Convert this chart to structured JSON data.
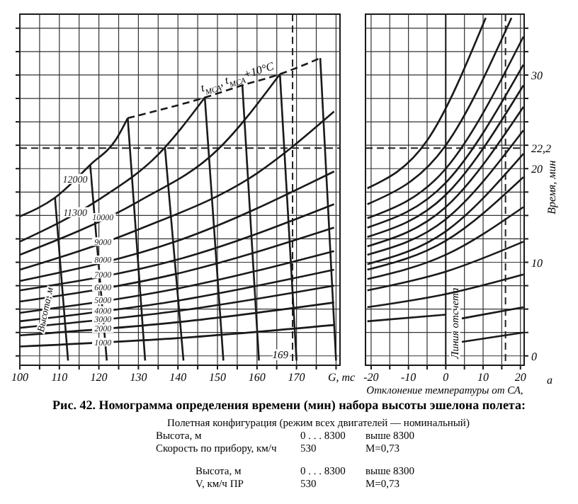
{
  "chart_data": [
    {
      "type": "line",
      "xlabel": "G, тс",
      "xlim": [
        100,
        181
      ],
      "ylim": [
        -1,
        36.5
      ],
      "tick_labels": "x",
      "grid": true,
      "xticks": [
        100,
        {
          "value": 105,
          "label": null
        },
        110,
        {
          "value": 115,
          "label": null
        },
        120,
        {
          "value": 125,
          "label": null
        },
        130,
        {
          "value": 135,
          "label": null
        },
        140,
        {
          "value": 145,
          "label": null
        },
        150,
        {
          "value": 155,
          "label": null
        },
        160,
        {
          "value": 165,
          "label": null
        },
        170,
        {
          "value": 175,
          "label": null
        },
        {
          "value": 180,
          "label": null
        }
      ],
      "yticks": [
        {
          "value": 0,
          "label": null
        },
        {
          "value": 2.5,
          "label": null
        },
        {
          "value": 5,
          "label": null
        },
        {
          "value": 7.5,
          "label": null
        },
        {
          "value": 10,
          "label": null
        },
        {
          "value": 12.5,
          "label": null
        },
        {
          "value": 15,
          "label": null
        },
        {
          "value": 17.5,
          "label": null
        },
        {
          "value": 20,
          "label": null
        },
        {
          "value": 22.5,
          "label": null
        },
        {
          "value": 25,
          "label": null
        },
        {
          "value": 27.5,
          "label": null
        },
        {
          "value": 30,
          "label": null
        },
        {
          "value": 32.5,
          "label": null
        },
        {
          "value": 35,
          "label": null
        }
      ],
      "annotations": [
        "Высота, м"
      ],
      "ref_lines": [
        {
          "axis": "x",
          "value": 169,
          "label": "169",
          "line_style": "dashed",
          "color": "#222222"
        },
        {
          "axis": "y",
          "value": 22.2,
          "line_style": "dashed",
          "color": "#222222"
        }
      ],
      "series": [
        {
          "name": "12000",
          "color": "#1a1a1a",
          "x": [
            100,
            108.9,
            117.8,
            124.3,
            127.3
          ],
          "values": [
            14.9,
            16.9,
            20.4,
            23.1,
            25.4
          ]
        },
        {
          "name": "11300",
          "color": "#1a1a1a",
          "x": [
            100,
            120,
            135,
            146.8
          ],
          "values": [
            12.2,
            16.7,
            21.5,
            27.6
          ]
        },
        {
          "name": "10000",
          "color": "#1a1a1a",
          "x": [
            100,
            130,
            150,
            165.8
          ],
          "values": [
            10.8,
            16.5,
            22,
            30.1
          ]
        },
        {
          "name": "9000",
          "color": "#1a1a1a",
          "x": [
            100,
            130,
            160,
            179.5
          ],
          "values": [
            9.2,
            13.5,
            19.5,
            26.1
          ]
        },
        {
          "name": "8000",
          "color": "#1a1a1a",
          "x": [
            100,
            140,
            179.5
          ],
          "values": [
            8.0,
            12.3,
            19.7
          ]
        },
        {
          "name": "7000",
          "color": "#1a1a1a",
          "x": [
            100,
            140,
            179.5
          ],
          "values": [
            7.0,
            10.3,
            16.2
          ]
        },
        {
          "name": "6000",
          "color": "#1a1a1a",
          "x": [
            100,
            140,
            179.5
          ],
          "values": [
            5.8,
            8.8,
            13.7
          ]
        },
        {
          "name": "5000",
          "color": "#1a1a1a",
          "x": [
            100,
            140,
            179.5
          ],
          "values": [
            4.6,
            7.2,
            11.2
          ]
        },
        {
          "name": "4000",
          "color": "#1a1a1a",
          "x": [
            100,
            140,
            179.5
          ],
          "values": [
            3.7,
            5.9,
            9.2
          ]
        },
        {
          "name": "3000",
          "color": "#1a1a1a",
          "x": [
            100,
            140,
            179.5
          ],
          "values": [
            3.0,
            4.8,
            7.5
          ]
        },
        {
          "name": "2000",
          "color": "#1a1a1a",
          "x": [
            100,
            140,
            179.5
          ],
          "values": [
            2.2,
            3.6,
            5.7
          ]
        },
        {
          "name": "1000",
          "color": "#1a1a1a",
          "x": [
            100,
            140,
            179.5
          ],
          "values": [
            1.0,
            1.9,
            3.3
          ]
        },
        {
          "name": "t$_{МСА}$, t$_{МСА}$+10°C",
          "color": "#1a1a1a",
          "line_style": "dashed",
          "x": [
            127.3,
            146.8,
            156.3,
            165.8,
            176
          ],
          "values": [
            25.4,
            27.6,
            28.9,
            30.1,
            31.8
          ]
        },
        {
          "color": "#1a1a1a",
          "x": [
            108.9,
            112.2
          ],
          "values": [
            16.9,
            -0.5
          ]
        },
        {
          "color": "#1a1a1a",
          "x": [
            117.8,
            122
          ],
          "values": [
            20.4,
            -0.5
          ]
        },
        {
          "color": "#1a1a1a",
          "x": [
            127.3,
            131.7
          ],
          "values": [
            25.4,
            -0.5
          ]
        },
        {
          "color": "#1a1a1a",
          "x": [
            136.7,
            141.4
          ],
          "values": [
            22.3,
            -0.5
          ]
        },
        {
          "color": "#1a1a1a",
          "x": [
            146.8,
            151.5
          ],
          "values": [
            27.6,
            -0.5
          ]
        },
        {
          "color": "#1a1a1a",
          "x": [
            156.3,
            160.5
          ],
          "values": [
            28.9,
            -0.5
          ]
        },
        {
          "color": "#1a1a1a",
          "x": [
            165.8,
            170
          ],
          "values": [
            30.1,
            -0.5
          ]
        },
        {
          "color": "#1a1a1a",
          "x": [
            176,
            180
          ],
          "values": [
            31.8,
            -0.5
          ]
        }
      ]
    },
    {
      "type": "line",
      "xlabel": "Отклонение температуры от СА,",
      "ylabel": "Время, мин",
      "xlim": [
        -21.5,
        21
      ],
      "ylim": [
        -1,
        36.5
      ],
      "grid": true,
      "xticks": [
        -20,
        {
          "value": -15,
          "label": null
        },
        -10,
        {
          "value": -5,
          "label": null
        },
        0,
        {
          "value": 5,
          "label": null
        },
        10,
        {
          "value": 15,
          "label": null
        },
        20
      ],
      "yticks": [
        0,
        {
          "value": 2.5,
          "label": null
        },
        {
          "value": 5,
          "label": null
        },
        {
          "value": 7.5,
          "label": null
        },
        10,
        {
          "value": 12.5,
          "label": null
        },
        {
          "value": 15,
          "label": null
        },
        {
          "value": 17.5,
          "label": null
        },
        20,
        {
          "value": 22.5,
          "label": null
        },
        {
          "value": 25,
          "label": null
        },
        {
          "value": 27.5,
          "label": null
        },
        30,
        {
          "value": 32.5,
          "label": null
        },
        {
          "value": 35,
          "label": null
        }
      ],
      "annotations": [
        "а"
      ],
      "ref_lines": [
        {
          "axis": "x",
          "value": 0,
          "label": "Линия отсчета",
          "color": "#1a1a1a"
        },
        {
          "axis": "x",
          "value": 16,
          "line_style": "dashed",
          "color": "#222222"
        },
        {
          "axis": "y",
          "value": 22.2,
          "label": "22,2",
          "line_style": "dashed",
          "color": "#222222"
        }
      ],
      "series": [
        {
          "color": "#1a1a1a",
          "x": [
            -21,
            -5,
            10.7
          ],
          "values": [
            17.9,
            23.0,
            36.1
          ]
        },
        {
          "color": "#1a1a1a",
          "x": [
            -21,
            0,
            17.6
          ],
          "values": [
            16.2,
            22.5,
            36.1
          ]
        },
        {
          "color": "#1a1a1a",
          "x": [
            -21,
            0,
            20.8
          ],
          "values": [
            14.7,
            20.0,
            34.1
          ]
        },
        {
          "color": "#1a1a1a",
          "x": [
            -21,
            0,
            20.8
          ],
          "values": [
            13.7,
            18.5,
            31.1
          ]
        },
        {
          "color": "#1a1a1a",
          "x": [
            -21,
            0,
            20.8
          ],
          "values": [
            12.7,
            17.2,
            28.9
          ]
        },
        {
          "color": "#1a1a1a",
          "x": [
            -21,
            0,
            20.8
          ],
          "values": [
            11.7,
            15.9,
            26.6
          ]
        },
        {
          "color": "#1a1a1a",
          "x": [
            -21,
            0,
            20.8
          ],
          "values": [
            10.8,
            14.6,
            24.1
          ]
        },
        {
          "color": "#1a1a1a",
          "x": [
            -21,
            0,
            20.8
          ],
          "values": [
            9.8,
            13.3,
            21.6
          ]
        },
        {
          "color": "#1a1a1a",
          "x": [
            -21,
            0,
            20.8
          ],
          "values": [
            9.2,
            12.3,
            19.1
          ]
        },
        {
          "color": "#1a1a1a",
          "x": [
            -21,
            0,
            20.8
          ],
          "values": [
            8.2,
            10.8,
            15.9
          ]
        },
        {
          "color": "#1a1a1a",
          "x": [
            -21,
            0,
            20.8
          ],
          "values": [
            7.0,
            9.0,
            12.2
          ]
        },
        {
          "color": "#1a1a1a",
          "x": [
            -21,
            0,
            20.8
          ],
          "values": [
            5.2,
            6.6,
            8.7
          ]
        },
        {
          "color": "#1a1a1a",
          "x": [
            -21,
            0
          ],
          "values": [
            3.7,
            4.4
          ]
        },
        {
          "color": "#1a1a1a",
          "x": [
            4.3,
            20.8
          ],
          "values": [
            4.0,
            5.2
          ]
        },
        {
          "color": "#1a1a1a",
          "x": [
            4.3,
            20.8
          ],
          "values": [
            1.5,
            2.5
          ]
        }
      ]
    },
    {
      "type": "other",
      "title": "Рис. 42. Номограмма определения времени (мин) набора высоты эшелона полета:",
      "annotations": [
        "Полетная конфигурация (режим всех двигателей — номинальный)",
        "Высота, м",
        "0 . . . 8300",
        "выше 8300",
        "Скорость по прибору, км/ч",
        "530",
        "М=0,73",
        "Высота, м",
        "0 . . . 8300",
        "выше 8300",
        "V, км/ч ПР",
        "530",
        "М=0,73"
      ]
    }
  ]
}
